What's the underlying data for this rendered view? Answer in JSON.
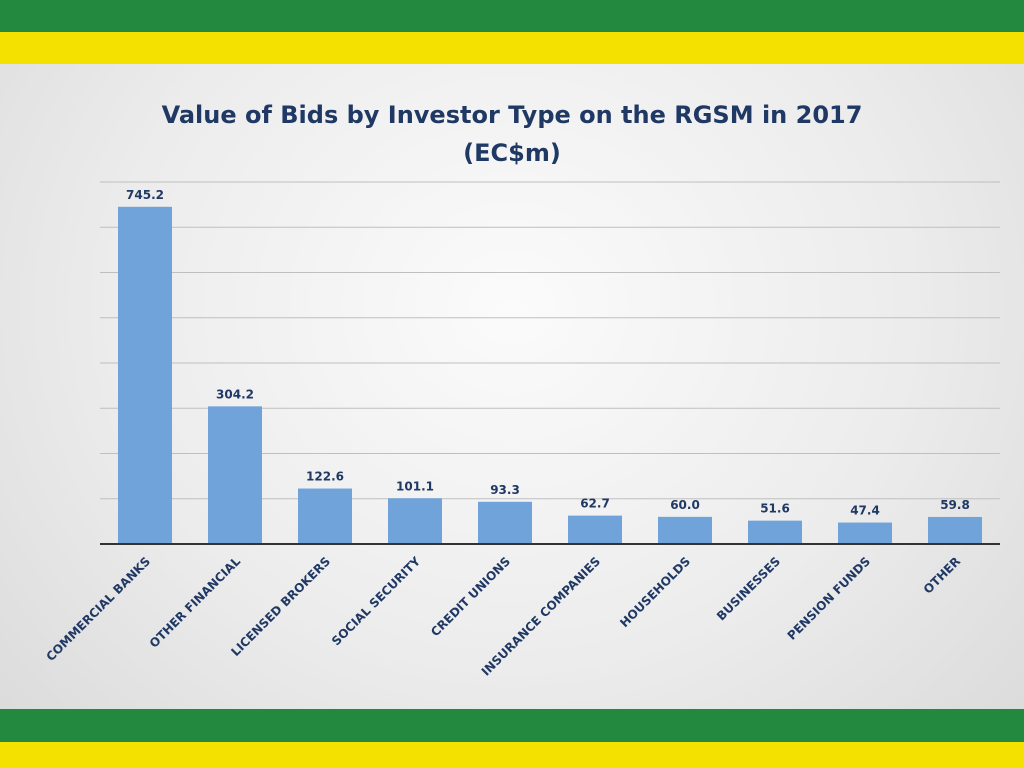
{
  "chart_data": {
    "type": "bar",
    "title": "Value of Bids by Investor Type on the RGSM in 2017",
    "subtitle": "(EC$m)",
    "categories": [
      "COMMERCIAL BANKS",
      "OTHER FINANCIAL",
      "LICENSED BROKERS",
      "SOCIAL SECURITY",
      "CREDIT UNIONS",
      "INSURANCE COMPANIES",
      "HOUSEHOLDS",
      "BUSINESSES",
      "PENSION FUNDS",
      "OTHER"
    ],
    "values": [
      745.2,
      304.2,
      122.6,
      101.1,
      93.3,
      62.7,
      60.0,
      51.6,
      47.4,
      59.8
    ],
    "value_labels": [
      "745.2",
      "304.2",
      "122.6",
      "101.1",
      "93.3",
      "62.7",
      "60.0",
      "51.6",
      "47.4",
      "59.8"
    ],
    "xlabel": "",
    "ylabel": "",
    "ylim": [
      0,
      800
    ],
    "grid": true,
    "legend": "none",
    "bar_color": "#6fa3d9"
  },
  "colors": {
    "green": "#23893f",
    "yellow": "#f5e100",
    "title": "#1f3864"
  }
}
